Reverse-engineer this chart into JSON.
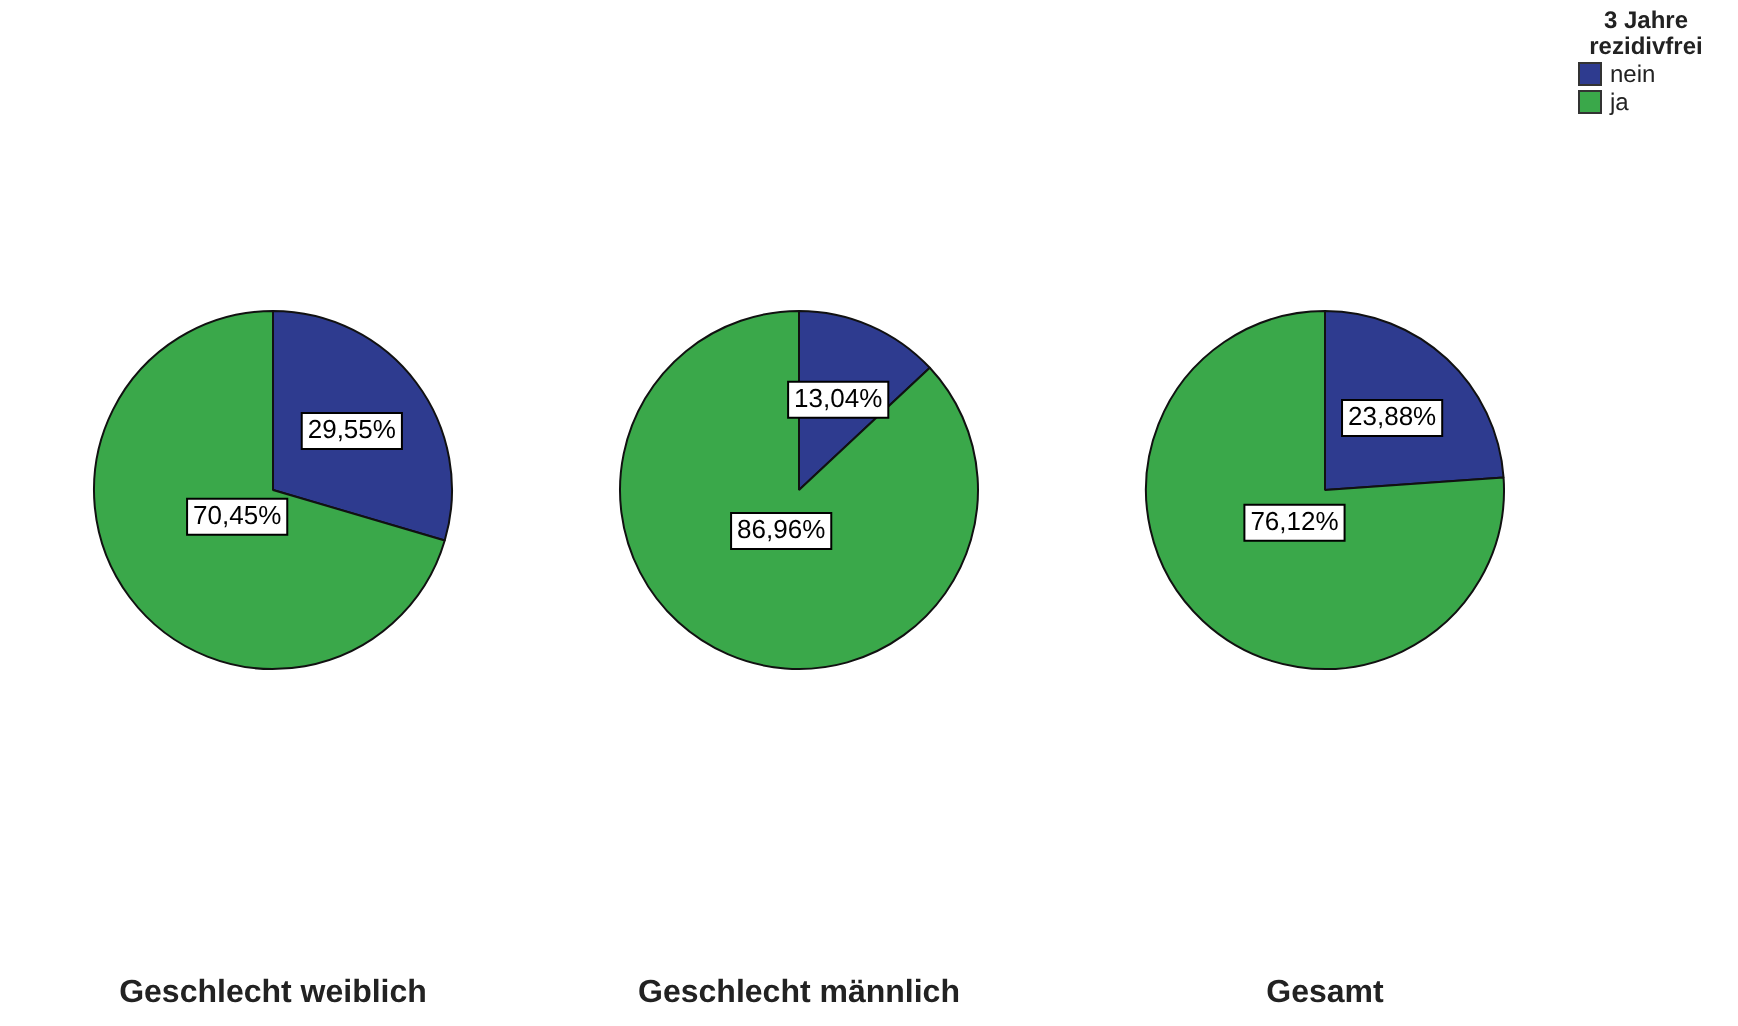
{
  "chart_data": [
    {
      "type": "pie",
      "title": "Geschlecht weiblich",
      "categories": [
        null,
        null
      ],
      "values": [
        29.55,
        70.45
      ],
      "value_labels": [
        "29,55%",
        "70,45%"
      ],
      "colors": [
        "#2e3b8f",
        "#3aa84a"
      ],
      "legend": false
    },
    {
      "type": "pie",
      "title": "Geschlecht männlich",
      "categories": [
        null,
        null
      ],
      "values": [
        13.04,
        86.96
      ],
      "value_labels": [
        "13,04%",
        "86,96%"
      ],
      "colors": [
        "#2e3b8f",
        "#3aa84a"
      ],
      "legend": false
    },
    {
      "type": "pie",
      "title": "Gesamt",
      "categories": [
        "nein",
        "ja"
      ],
      "values": [
        23.88,
        76.12
      ],
      "value_labels": [
        "23,88%",
        "76,12%"
      ],
      "colors": [
        "#2e3b8f",
        "#3aa84a"
      ],
      "legend": "top right",
      "legend_title": "3 Jahre rezidivfrei"
    }
  ]
}
